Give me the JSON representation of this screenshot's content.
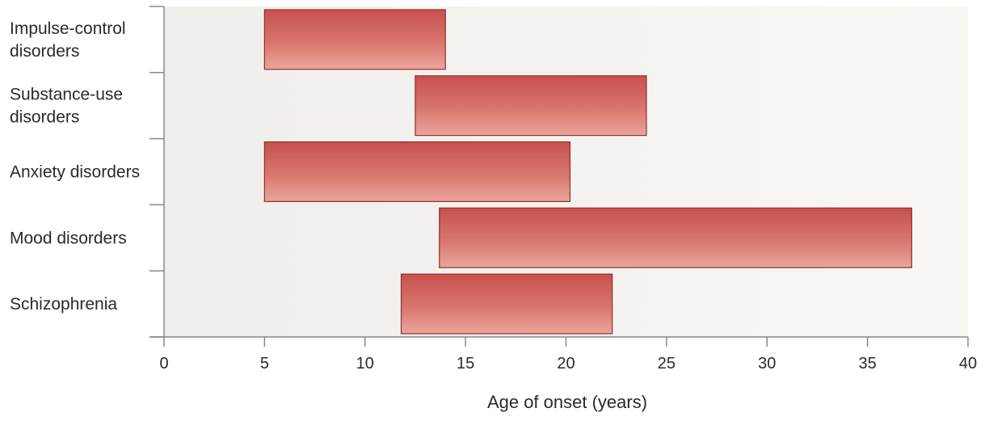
{
  "chart_data": {
    "type": "bar",
    "orientation": "horizontal-range",
    "title": "",
    "xlabel": "Age of onset (years)",
    "ylabel": "",
    "xlim": [
      0,
      40
    ],
    "xticks": [
      0,
      5,
      10,
      15,
      20,
      25,
      30,
      35,
      40
    ],
    "grid": false,
    "legend": "none",
    "categories": [
      [
        "Impulse-control",
        "disorders"
      ],
      [
        "Substance-use",
        "disorders"
      ],
      [
        "Anxiety disorders"
      ],
      [
        "Mood disorders"
      ],
      [
        "Schizophrenia"
      ]
    ],
    "ranges": [
      {
        "start": 5,
        "end": 14
      },
      {
        "start": 12.5,
        "end": 24
      },
      {
        "start": 5,
        "end": 20.2
      },
      {
        "start": 13.7,
        "end": 37.2
      },
      {
        "start": 11.8,
        "end": 22.3
      }
    ],
    "colors": {
      "bar_top": "#c8504e",
      "bar_bottom": "#eaa59b",
      "bar_edge": "#8f2f2c",
      "plot_bg": "#f4f2ee",
      "axis": "#888888"
    }
  }
}
